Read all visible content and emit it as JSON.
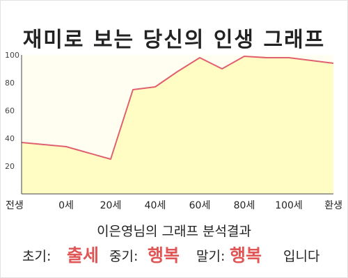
{
  "title": "재미로 보는 당신의 인생 그래프",
  "subtitle": "이은영님의 그래프 분석결과",
  "summary": {
    "early_label": "초기:",
    "early_value": "출세",
    "mid_label": "중기:",
    "mid_value": "행복",
    "late_label": "말기:",
    "late_value": "행복",
    "ending": "입니다"
  },
  "colors": {
    "line": "#e06070",
    "fill": "#fffcc4",
    "plot_bg": "#fffef0",
    "highlight": "#e05555"
  },
  "chart_data": {
    "type": "area",
    "title": "재미로 보는 당신의 인생 그래프",
    "x_ticks": [
      "전생",
      "0세",
      "20세",
      "40세",
      "60세",
      "80세",
      "100세",
      "환생"
    ],
    "y_ticks": [
      20,
      40,
      60,
      80,
      100
    ],
    "ylim": [
      0,
      100
    ],
    "grid": false,
    "series": [
      {
        "x": [
          -20,
          0,
          20,
          30,
          40,
          50,
          60,
          70,
          80,
          90,
          100,
          110,
          120
        ],
        "values": [
          37,
          34,
          25,
          75,
          77,
          88,
          98,
          90,
          99,
          98,
          98,
          96,
          94
        ]
      }
    ]
  }
}
